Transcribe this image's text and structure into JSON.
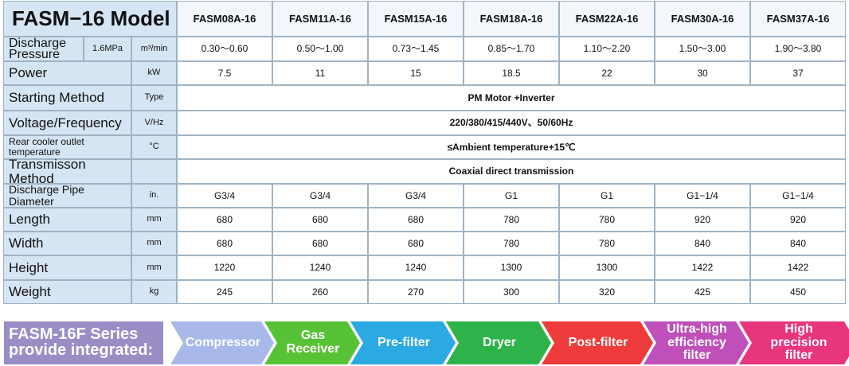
{
  "header": {
    "title": "FASM−16 Model",
    "models": [
      "FASM08A-16",
      "FASM11A-16",
      "FASM15A-16",
      "FASM18A-16",
      "FASM22A-16",
      "FASM30A-16",
      "FASM37A-16"
    ]
  },
  "table": {
    "rows": [
      {
        "label": "Discharge Pressure",
        "condition": "1.6MPa",
        "unit": "m³/min",
        "values": [
          "0.30～0.60",
          "0.50～1.00",
          "0.73～1.45",
          "0.85～1.70",
          "1.10～2.20",
          "1.50～3.00",
          "1.90～3.80"
        ]
      },
      {
        "label": "Power",
        "unit": "kW",
        "values": [
          "7.5",
          "11",
          "15",
          "18.5",
          "22",
          "30",
          "37"
        ]
      },
      {
        "label": "Starting Method",
        "unit": "Type",
        "value": "PM Motor +Inverter"
      },
      {
        "label": "Voltage/Frequency",
        "unit": "V/Hz",
        "value": "220/380/415/440V、50/60Hz"
      },
      {
        "label": "Rear cooler outlet temperature",
        "unit": "°C",
        "value": "≤Ambient temperature+15℃"
      },
      {
        "label": "Transmisson Method",
        "value": "Coaxial direct transmission"
      },
      {
        "label": "Discharge Pipe Diameter",
        "unit": "in.",
        "values": [
          "G3/4",
          "G3/4",
          "G3/4",
          "G1",
          "G1",
          "G1−1/4",
          "G1−1/4"
        ]
      },
      {
        "label": "Length",
        "unit": "mm",
        "values": [
          "680",
          "680",
          "680",
          "780",
          "780",
          "920",
          "920"
        ]
      },
      {
        "label": "Width",
        "unit": "mm",
        "values": [
          "680",
          "680",
          "680",
          "780",
          "780",
          "840",
          "840"
        ]
      },
      {
        "label": "Height",
        "unit": "mm",
        "values": [
          "1220",
          "1240",
          "1240",
          "1300",
          "1300",
          "1422",
          "1422"
        ]
      },
      {
        "label": "Weight",
        "unit": "kg",
        "values": [
          "245",
          "260",
          "270",
          "300",
          "320",
          "425",
          "450"
        ]
      }
    ]
  },
  "banner": {
    "title": "FASM-16F Series provide integrated:",
    "steps": [
      "Compressor",
      "Gas Receiver",
      "Pre-filter",
      "Dryer",
      "Post-filter",
      "Ultra-high efficiency filter",
      "High precision filter"
    ]
  }
}
